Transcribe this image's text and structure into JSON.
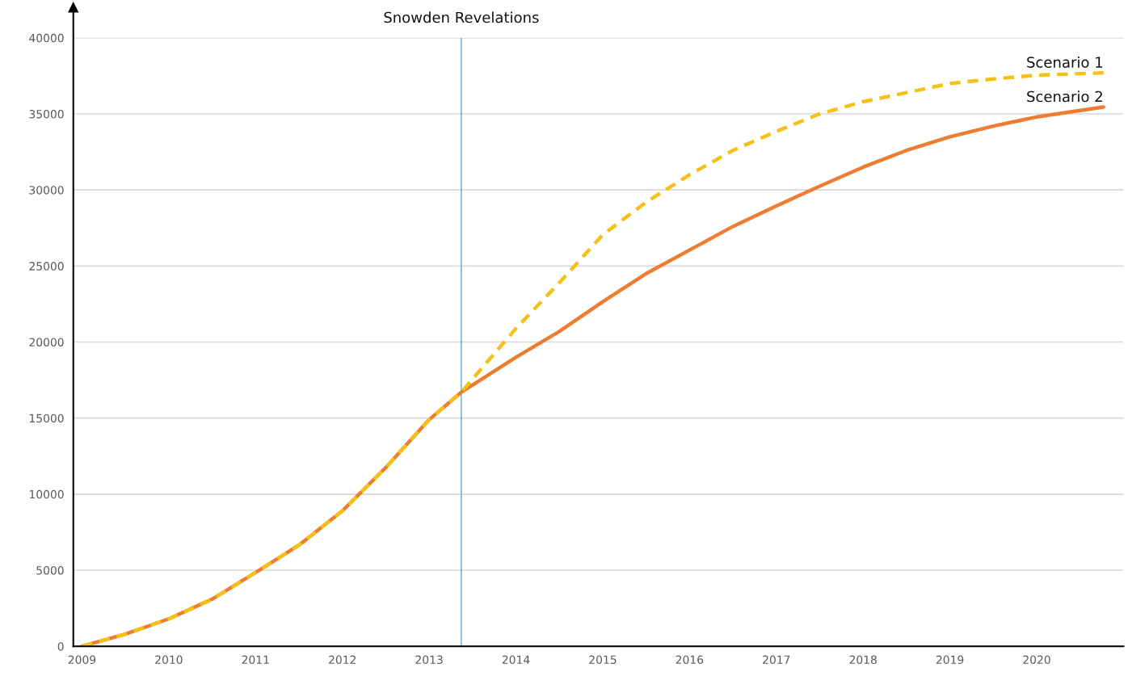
{
  "chart_data": {
    "type": "line",
    "x": [
      2009,
      2009.5,
      2010,
      2010.5,
      2011,
      2011.5,
      2012,
      2012.5,
      2013,
      2013.37,
      2014,
      2014.5,
      2015,
      2015.5,
      2016,
      2016.5,
      2017,
      2017.5,
      2018,
      2018.5,
      2019,
      2019.5,
      2020,
      2020.77
    ],
    "series": [
      {
        "name": "Scenario 2",
        "color": "#ed7d31",
        "line_style": "solid",
        "values": [
          0,
          800,
          1800,
          3100,
          4850,
          6650,
          8900,
          11750,
          14900,
          16700,
          19000,
          20700,
          22650,
          24500,
          26050,
          27600,
          28950,
          30250,
          31500,
          32600,
          33500,
          34200,
          34800,
          35450
        ]
      },
      {
        "name": "Scenario 1",
        "color": "#f5c118",
        "line_style": "dashed",
        "values": [
          0,
          800,
          1800,
          3100,
          4850,
          6650,
          8900,
          11750,
          14900,
          16700,
          20900,
          23900,
          27050,
          29200,
          31000,
          32600,
          33850,
          35000,
          35800,
          36400,
          37000,
          37300,
          37550,
          37700
        ]
      }
    ],
    "xlim": [
      2008.9,
      2021.0
    ],
    "xticks": [
      2009,
      2010,
      2011,
      2012,
      2013,
      2014,
      2015,
      2016,
      2017,
      2018,
      2019,
      2020
    ],
    "ylim": [
      0,
      40000
    ],
    "yticks": [
      0,
      5000,
      10000,
      15000,
      20000,
      25000,
      30000,
      35000,
      40000
    ],
    "grid": "y",
    "legend": false,
    "marker": "none",
    "ref_lines": [
      {
        "axis": "x",
        "value": 2013.37,
        "label": "Snowden Revelations",
        "color": "#5b9bd5"
      }
    ]
  }
}
